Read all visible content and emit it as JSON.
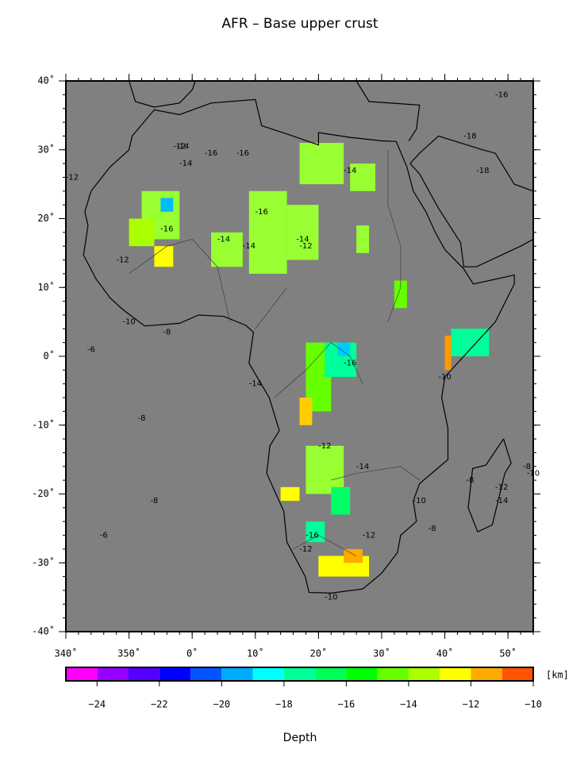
{
  "map": {
    "type": "map",
    "title": "AFR – Base upper crust",
    "lonlim": [
      -20,
      54
    ],
    "latlim": [
      -40,
      40
    ],
    "lon_ticks": [
      {
        "value": -20,
        "label": "340˚"
      },
      {
        "value": -10,
        "label": "350˚"
      },
      {
        "value": 0,
        "label": "0˚"
      },
      {
        "value": 10,
        "label": "10˚"
      },
      {
        "value": 20,
        "label": "20˚"
      },
      {
        "value": 30,
        "label": "30˚"
      },
      {
        "value": 40,
        "label": "40˚"
      },
      {
        "value": 50,
        "label": "50˚"
      }
    ],
    "lat_ticks": [
      {
        "value": 40,
        "label": "40˚"
      },
      {
        "value": 30,
        "label": "30˚"
      },
      {
        "value": 20,
        "label": "20˚"
      },
      {
        "value": 10,
        "label": "10˚"
      },
      {
        "value": 0,
        "label": "0˚"
      },
      {
        "value": -10,
        "label": "-10˚"
      },
      {
        "value": -20,
        "label": "-20˚"
      },
      {
        "value": -30,
        "label": "-30˚"
      },
      {
        "value": -40,
        "label": "-40˚"
      }
    ],
    "contour_labels": [
      "-12",
      "-14",
      "-16",
      "-16",
      "-14",
      "-16",
      "-18",
      "-14",
      "-12",
      "-14",
      "-16",
      "-14",
      "-12",
      "-10",
      "-8",
      "-6",
      "-12",
      "-14",
      "-16",
      "-14",
      "-8",
      "-12",
      "-14",
      "-10",
      "-8",
      "-16",
      "-12",
      "-10",
      "-8",
      "-6",
      "-8",
      "-14",
      "-12",
      "-10",
      "-8",
      "-18",
      "-16",
      "-12",
      "-10"
    ],
    "colorbar": {
      "label": "Depth",
      "unit": "[km]",
      "lim": [
        -25,
        -10
      ],
      "colors": [
        "#ff00ff",
        "#9900ff",
        "#5500ff",
        "#0000ff",
        "#0055ff",
        "#00aaff",
        "#00ffff",
        "#00ff99",
        "#00ff55",
        "#00ff00",
        "#66ff00",
        "#aaff00",
        "#ffff00",
        "#ffaa00",
        "#ff5500"
      ],
      "ticks": [
        {
          "value": -24,
          "label": "−24"
        },
        {
          "value": -22,
          "label": "−22"
        },
        {
          "value": -20,
          "label": "−20"
        },
        {
          "value": -18,
          "label": "−18"
        },
        {
          "value": -16,
          "label": "−16"
        },
        {
          "value": -14,
          "label": "−14"
        },
        {
          "value": -12,
          "label": "−12"
        },
        {
          "value": -10,
          "label": "−10"
        }
      ]
    }
  }
}
